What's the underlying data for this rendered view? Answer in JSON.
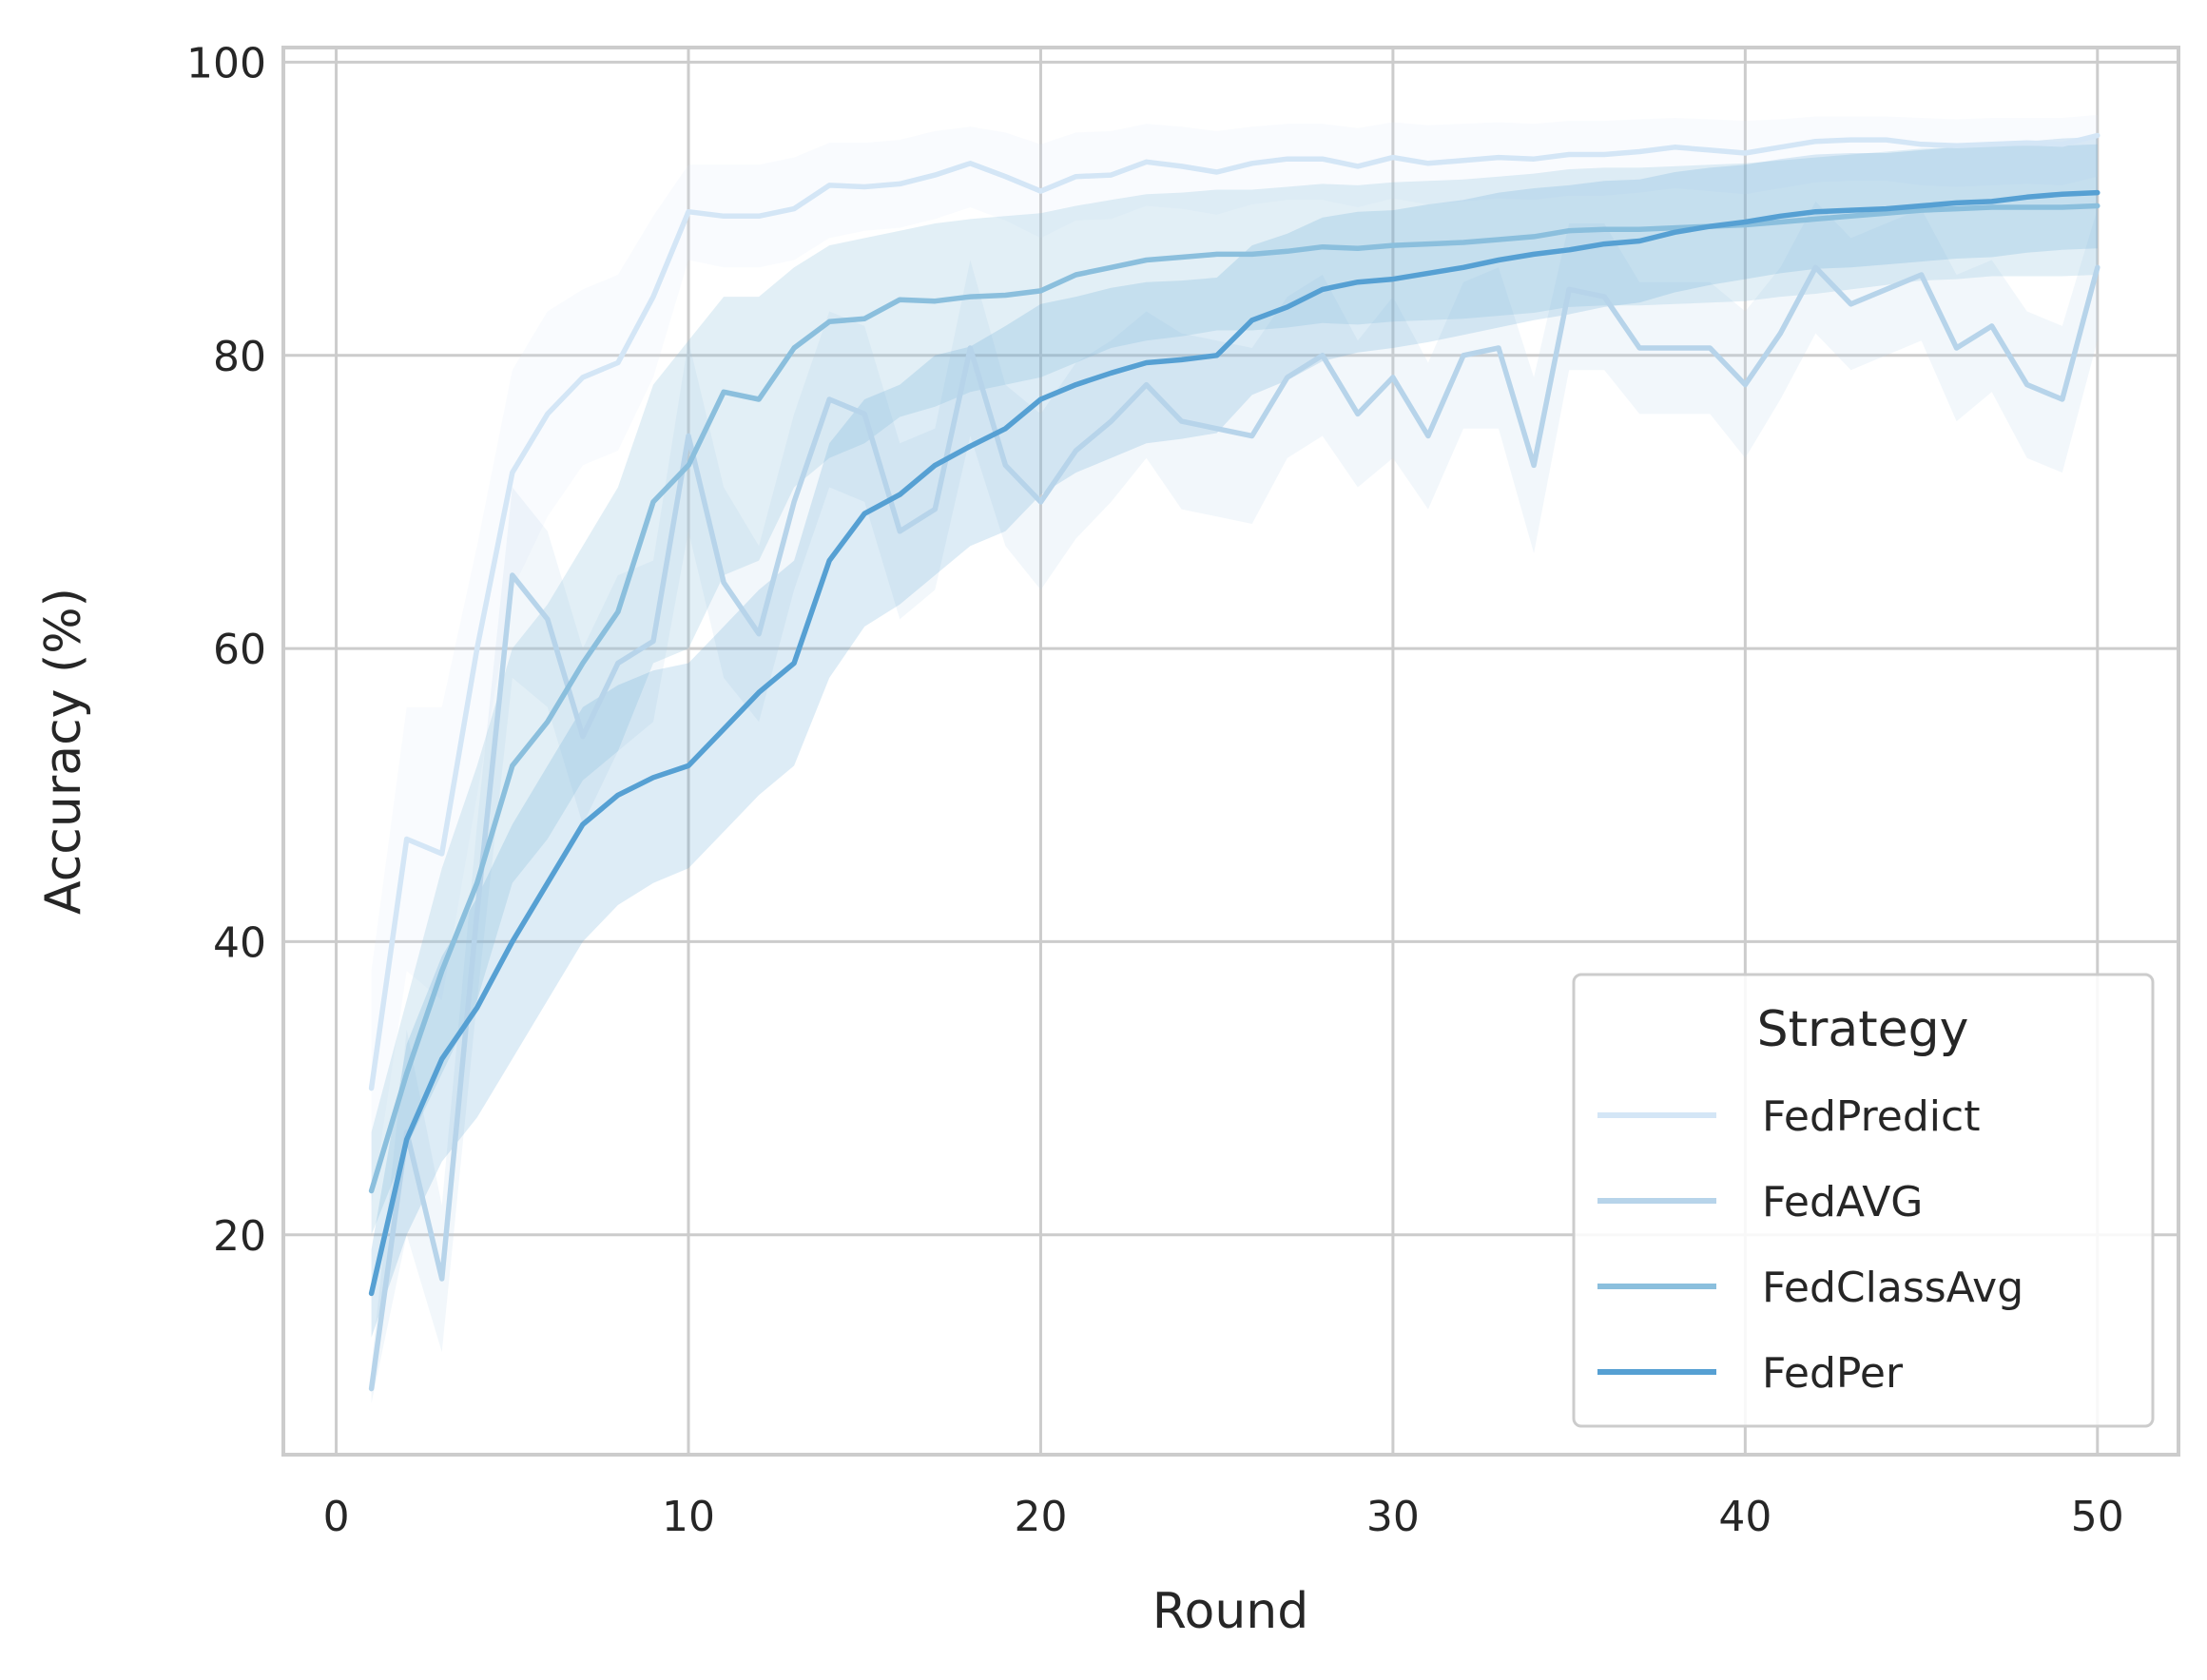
{
  "chart_data": {
    "type": "line",
    "xlabel": "Round",
    "ylabel": "Accuracy (%)",
    "xlim": [
      -1.5,
      52.3
    ],
    "ylim": [
      5,
      101
    ],
    "xticks": [
      0,
      10,
      20,
      30,
      40,
      50
    ],
    "yticks": [
      20,
      40,
      60,
      80,
      100
    ],
    "grid": true,
    "legend": {
      "title": "Strategy",
      "placement": "bottom-right"
    },
    "x": [
      1,
      2,
      3,
      4,
      5,
      6,
      7,
      8,
      9,
      10,
      11,
      12,
      13,
      14,
      15,
      16,
      17,
      18,
      19,
      20,
      21,
      22,
      23,
      24,
      25,
      26,
      27,
      28,
      29,
      30,
      31,
      32,
      33,
      34,
      35,
      36,
      37,
      38,
      39,
      40,
      41,
      42,
      43,
      44,
      45,
      46,
      47,
      48,
      49,
      50
    ],
    "series": [
      {
        "name": "FedPredict",
        "color": "#d4e6f6",
        "band_opacity": 0.14,
        "values": [
          30,
          47,
          46,
          60,
          72,
          76,
          78.5,
          79.5,
          84,
          89.8,
          89.5,
          89.5,
          90,
          91.6,
          91.5,
          91.7,
          92.3,
          93.1,
          92.2,
          91.2,
          92.2,
          92.3,
          93.2,
          92.9,
          92.5,
          93.1,
          93.4,
          93.4,
          92.9,
          93.5,
          93.1,
          93.3,
          93.5,
          93.4,
          93.7,
          93.7,
          93.9,
          94.2,
          94,
          93.8,
          94.2,
          94.6,
          94.7,
          94.7,
          94.4,
          94.3,
          94.4,
          94.5,
          94.4,
          95
        ],
        "lower": [
          22,
          38,
          36,
          50,
          64,
          69,
          72.5,
          73.5,
          78.5,
          86.5,
          86,
          86,
          86.5,
          88,
          88.5,
          88.7,
          89.3,
          90.1,
          89.2,
          88,
          89.2,
          89.3,
          90.2,
          90,
          89.6,
          90.3,
          90.6,
          90.6,
          90.1,
          90.7,
          90.3,
          90.5,
          90.7,
          90.6,
          90.9,
          90.9,
          91.1,
          91.4,
          91.2,
          91,
          91.4,
          91.8,
          91.9,
          91.9,
          91.6,
          91.5,
          91.6,
          91.7,
          91.6,
          92.2
        ],
        "upper": [
          38,
          56,
          56,
          67,
          79,
          83,
          84.5,
          85.5,
          89.5,
          93,
          93,
          93,
          93.5,
          94.5,
          94.5,
          94.7,
          95.3,
          95.6,
          95.2,
          94.4,
          95.2,
          95.3,
          95.8,
          95.6,
          95.3,
          95.6,
          95.8,
          95.8,
          95.5,
          95.9,
          95.7,
          95.8,
          95.9,
          95.8,
          96,
          96,
          96.1,
          96.2,
          96.1,
          96,
          96.1,
          96.3,
          96.3,
          96.3,
          96.2,
          96.1,
          96.2,
          96.2,
          96.2,
          96.4
        ]
      },
      {
        "name": "FedAVG",
        "color": "#b7d4ea",
        "band_opacity": 0.18,
        "values": [
          9.5,
          27,
          17,
          42,
          65,
          62,
          54,
          59,
          60.5,
          74.5,
          64.5,
          61,
          70,
          77,
          76,
          68,
          69.5,
          80.5,
          72.5,
          70,
          73.5,
          75.5,
          78,
          75.5,
          75,
          74.5,
          78.5,
          80,
          76,
          78.5,
          74.5,
          80,
          80.5,
          72.5,
          84.5,
          84,
          80.5,
          80.5,
          80.5,
          78,
          81.5,
          86,
          83.5,
          84.5,
          85.5,
          80.5,
          82,
          78,
          77,
          86
        ],
        "lower": [
          8.5,
          20,
          12,
          36,
          58,
          56,
          48,
          53,
          55,
          68,
          58,
          55,
          64,
          71,
          70,
          62,
          64,
          74.5,
          67,
          64,
          67.5,
          70,
          73,
          69.5,
          69,
          68.5,
          73,
          74.5,
          71,
          73,
          69.5,
          75,
          75,
          66.5,
          79,
          79,
          76,
          76,
          76,
          73,
          77,
          81.5,
          79,
          80,
          81,
          75.5,
          77.5,
          73,
          72,
          81
        ],
        "upper": [
          11,
          34,
          22,
          48,
          71,
          68,
          60,
          65,
          66,
          81,
          71,
          67,
          76,
          83,
          82,
          74,
          75,
          86.5,
          78,
          76,
          79.5,
          81,
          83,
          81.5,
          81,
          80.5,
          84,
          85.5,
          81,
          84,
          79.5,
          85,
          86,
          78.5,
          89,
          89,
          85,
          85,
          85,
          83,
          86,
          90.5,
          88,
          89,
          90,
          85.5,
          86.5,
          83,
          82,
          90
        ]
      },
      {
        "name": "FedClassAvg",
        "color": "#8bbfdd",
        "band_opacity": 0.25,
        "values": [
          23,
          31,
          38,
          44,
          52,
          55,
          59,
          62.5,
          70,
          72.5,
          77.5,
          77,
          80.5,
          82.3,
          82.5,
          83.8,
          83.7,
          84,
          84.1,
          84.4,
          85.5,
          86,
          86.5,
          86.7,
          86.9,
          86.9,
          87.1,
          87.4,
          87.3,
          87.5,
          87.6,
          87.7,
          87.9,
          88.1,
          88.5,
          88.6,
          88.6,
          88.7,
          88.8,
          88.9,
          89.1,
          89.3,
          89.5,
          89.7,
          89.9,
          90,
          90.1,
          90.1,
          90.1,
          90.2
        ],
        "lower": [
          20,
          26,
          31,
          36,
          44,
          47,
          51,
          53,
          59,
          60,
          65,
          66,
          71,
          73,
          74,
          75.8,
          76.5,
          77.5,
          78,
          78.5,
          79.5,
          80.5,
          81,
          81.3,
          81.7,
          81.7,
          81.9,
          82.2,
          82.1,
          82.3,
          82.4,
          82.5,
          82.7,
          82.9,
          83.3,
          83.4,
          83.4,
          83.5,
          83.6,
          83.7,
          84,
          84.2,
          84.5,
          84.8,
          85.1,
          85.2,
          85.4,
          85.4,
          85.4,
          85.5
        ],
        "upper": [
          27,
          36,
          45,
          52,
          60,
          63,
          67,
          71,
          78,
          81,
          84,
          84,
          86,
          87.5,
          88,
          88.5,
          89,
          89.3,
          89.5,
          89.7,
          90.2,
          90.6,
          91,
          91.1,
          91.3,
          91.3,
          91.5,
          91.7,
          91.6,
          91.8,
          91.9,
          92,
          92.2,
          92.4,
          92.7,
          92.8,
          92.8,
          92.9,
          93,
          93.1,
          93.3,
          93.5,
          93.7,
          93.9,
          94.1,
          94.2,
          94.3,
          94.3,
          94.3,
          94.4
        ]
      },
      {
        "name": "FedPer",
        "color": "#56a0d3",
        "band_opacity": 0.2,
        "values": [
          16,
          26.5,
          32,
          35.5,
          40,
          44,
          48,
          50,
          51.2,
          52,
          54.5,
          57,
          59,
          66,
          69.2,
          70.5,
          72.5,
          73.8,
          75,
          77,
          78,
          78.8,
          79.5,
          79.7,
          80,
          82.4,
          83.3,
          84.5,
          85,
          85.2,
          85.6,
          86,
          86.5,
          86.9,
          87.2,
          87.6,
          87.8,
          88.4,
          88.8,
          89.1,
          89.5,
          89.8,
          89.9,
          90,
          90.2,
          90.4,
          90.5,
          90.8,
          91,
          91.1
        ],
        "lower": [
          13,
          20,
          25,
          28,
          32,
          36,
          40,
          42.5,
          44,
          45,
          47.5,
          50,
          52,
          58,
          61.5,
          63,
          65,
          67,
          68,
          70.5,
          72,
          73,
          74,
          74.3,
          74.7,
          77.3,
          78.3,
          79.6,
          80.2,
          80.5,
          80.9,
          81.4,
          81.9,
          82.4,
          82.8,
          83.3,
          83.6,
          84.3,
          84.8,
          85.2,
          85.6,
          85.9,
          86,
          86.2,
          86.4,
          86.6,
          86.7,
          87,
          87.2,
          87.3
        ],
        "upper": [
          19,
          33,
          39,
          43,
          48,
          52,
          56,
          57.5,
          58.5,
          59,
          61.5,
          64,
          66,
          74,
          77,
          78,
          80,
          80.6,
          82,
          83.5,
          84,
          84.6,
          85,
          85.1,
          85.3,
          87.5,
          88.3,
          89.4,
          89.8,
          89.9,
          90.3,
          90.6,
          91.1,
          91.4,
          91.6,
          91.9,
          92,
          92.5,
          92.8,
          93,
          93.4,
          93.7,
          93.8,
          93.8,
          94,
          94.2,
          94.3,
          94.6,
          94.8,
          94.9
        ]
      }
    ]
  }
}
